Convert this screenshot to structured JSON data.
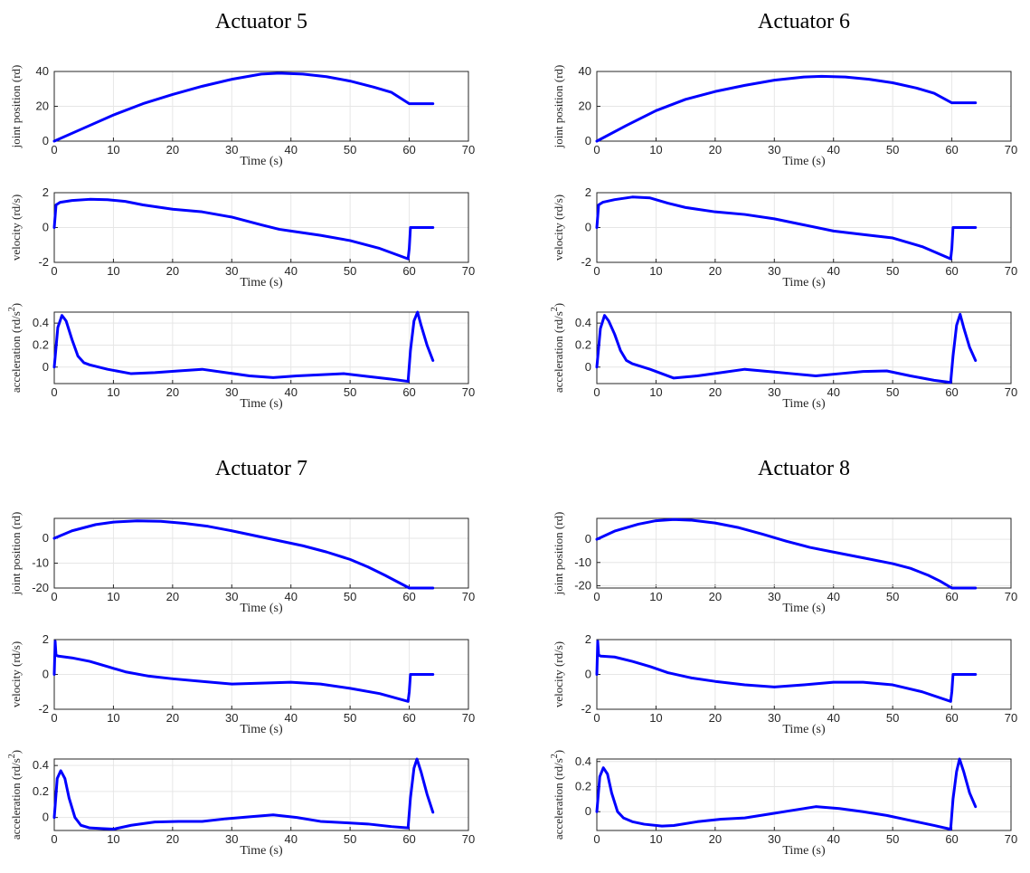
{
  "style": {
    "line_color": "#0000ff",
    "grid": true
  },
  "units": {
    "rd_s2_base": "acceleration (rd/s",
    "rd_s2_exp": "2",
    "rd_s2_tail": ")"
  },
  "chart_data": [
    {
      "title": "Actuator 5",
      "subplots": [
        {
          "type": "line",
          "xlabel": "Time (s)",
          "ylabel": "joint position (rd)",
          "xlim": [
            0,
            70
          ],
          "ylim": [
            0,
            40
          ],
          "xticks": [
            "0",
            "10",
            "20",
            "30",
            "40",
            "50",
            "60",
            "70"
          ],
          "yticks": [
            "0",
            "20",
            "40"
          ],
          "series": [
            {
              "x": [
                0,
                5,
                10,
                15,
                20,
                25,
                30,
                35,
                38,
                42,
                46,
                50,
                54,
                57,
                60,
                64
              ],
              "y": [
                0,
                7.5,
                15,
                21.5,
                26.8,
                31.5,
                35.5,
                38.5,
                39,
                38.5,
                37,
                34.5,
                31,
                28,
                21.5,
                21.5
              ]
            }
          ]
        },
        {
          "type": "line",
          "xlabel": "Time (s)",
          "ylabel": "velocity (rd/s)",
          "xlim": [
            0,
            70
          ],
          "ylim": [
            -2,
            2
          ],
          "xticks": [
            "0",
            "10",
            "20",
            "30",
            "40",
            "50",
            "60",
            "70"
          ],
          "yticks": [
            "-2",
            "0",
            "2"
          ],
          "series": [
            {
              "x": [
                0,
                0.3,
                1,
                3,
                6,
                9,
                12,
                15,
                20,
                25,
                30,
                35,
                38,
                40,
                45,
                50,
                55,
                59.8,
                60,
                60.2,
                61,
                64
              ],
              "y": [
                0,
                1.3,
                1.45,
                1.55,
                1.62,
                1.6,
                1.5,
                1.3,
                1.05,
                0.9,
                0.6,
                0.15,
                -0.1,
                -0.2,
                -0.45,
                -0.75,
                -1.2,
                -1.8,
                -1.2,
                0,
                0,
                0
              ]
            }
          ]
        },
        {
          "type": "line",
          "xlabel": "Time (s)",
          "ylabel": "acceleration (rd/s²)",
          "xlim": [
            0,
            70
          ],
          "ylim": [
            -0.15,
            0.5
          ],
          "xticks": [
            "0",
            "10",
            "20",
            "30",
            "40",
            "50",
            "60",
            "70"
          ],
          "yticks": [
            "0",
            "0.2",
            "0.4"
          ],
          "series": [
            {
              "x": [
                0,
                0.6,
                1.3,
                2,
                3,
                4,
                5,
                6,
                9,
                13,
                17,
                21,
                25,
                29,
                33,
                37,
                41,
                45,
                49,
                53,
                57,
                59.8,
                60.2,
                60.8,
                61.4,
                62,
                63,
                64
              ],
              "y": [
                0,
                0.36,
                0.47,
                0.42,
                0.25,
                0.1,
                0.04,
                0.02,
                -0.02,
                -0.06,
                -0.05,
                -0.035,
                -0.02,
                -0.05,
                -0.08,
                -0.095,
                -0.08,
                -0.07,
                -0.06,
                -0.085,
                -0.11,
                -0.13,
                0.15,
                0.42,
                0.5,
                0.38,
                0.2,
                0.06
              ]
            }
          ]
        }
      ]
    },
    {
      "title": "Actuator 6",
      "subplots": [
        {
          "type": "line",
          "xlabel": "Time (s)",
          "ylabel": "joint position (rd)",
          "xlim": [
            0,
            70
          ],
          "ylim": [
            0,
            40
          ],
          "xticks": [
            "0",
            "10",
            "20",
            "30",
            "40",
            "50",
            "60",
            "70"
          ],
          "yticks": [
            "0",
            "20",
            "40"
          ],
          "series": [
            {
              "x": [
                0,
                5,
                10,
                15,
                20,
                25,
                30,
                35,
                38,
                42,
                46,
                50,
                54,
                57,
                60,
                64
              ],
              "y": [
                0,
                9,
                17.5,
                24,
                28.5,
                32,
                35,
                36.8,
                37.2,
                36.8,
                35.5,
                33.5,
                30.5,
                27.5,
                22,
                22
              ]
            }
          ]
        },
        {
          "type": "line",
          "xlabel": "Time (s)",
          "ylabel": "velocity (rd/s)",
          "xlim": [
            0,
            70
          ],
          "ylim": [
            -2,
            2
          ],
          "xticks": [
            "0",
            "10",
            "20",
            "30",
            "40",
            "50",
            "60",
            "70"
          ],
          "yticks": [
            "-2",
            "0",
            "2"
          ],
          "series": [
            {
              "x": [
                0,
                0.3,
                1,
                3,
                6,
                9,
                12,
                15,
                20,
                25,
                30,
                35,
                40,
                45,
                50,
                55,
                59.8,
                60,
                60.2,
                61,
                64
              ],
              "y": [
                0,
                1.3,
                1.45,
                1.6,
                1.75,
                1.7,
                1.4,
                1.15,
                0.9,
                0.75,
                0.5,
                0.15,
                -0.2,
                -0.4,
                -0.6,
                -1.1,
                -1.8,
                -1.2,
                0,
                0,
                0
              ]
            }
          ]
        },
        {
          "type": "line",
          "xlabel": "Time (s)",
          "ylabel": "acceleration (rd/s²)",
          "xlim": [
            0,
            70
          ],
          "ylim": [
            -0.15,
            0.5
          ],
          "xticks": [
            "0",
            "10",
            "20",
            "30",
            "40",
            "50",
            "60",
            "70"
          ],
          "yticks": [
            "0",
            "0.2",
            "0.4"
          ],
          "series": [
            {
              "x": [
                0,
                0.6,
                1.3,
                2,
                3,
                4,
                5,
                6,
                9,
                13,
                17,
                21,
                25,
                29,
                33,
                37,
                41,
                45,
                49,
                53,
                57,
                59.8,
                60.2,
                60.8,
                61.4,
                62,
                63,
                64
              ],
              "y": [
                0,
                0.35,
                0.47,
                0.42,
                0.3,
                0.15,
                0.06,
                0.03,
                -0.02,
                -0.1,
                -0.08,
                -0.05,
                -0.02,
                -0.04,
                -0.06,
                -0.08,
                -0.06,
                -0.04,
                -0.035,
                -0.08,
                -0.12,
                -0.14,
                0.1,
                0.38,
                0.48,
                0.36,
                0.18,
                0.06
              ]
            }
          ]
        }
      ]
    },
    {
      "title": "Actuator 7",
      "subplots": [
        {
          "type": "line",
          "xlabel": "Time (s)",
          "ylabel": "joint position (rd)",
          "xlim": [
            0,
            70
          ],
          "ylim": [
            -20,
            8
          ],
          "xticks": [
            "0",
            "10",
            "20",
            "30",
            "40",
            "50",
            "60",
            "70"
          ],
          "yticks": [
            "-20",
            "-10",
            "0"
          ],
          "series": [
            {
              "x": [
                0,
                3,
                7,
                10,
                14,
                18,
                22,
                26,
                30,
                34,
                38,
                42,
                46,
                50,
                53,
                56,
                58,
                60,
                64
              ],
              "y": [
                0,
                3,
                5.5,
                6.5,
                7,
                6.8,
                6,
                4.8,
                3,
                1,
                -1,
                -3,
                -5.5,
                -8.5,
                -11.5,
                -15,
                -17.5,
                -20,
                -20
              ]
            }
          ]
        },
        {
          "type": "line",
          "xlabel": "Time (s)",
          "ylabel": "velocity (rd/s)",
          "xlim": [
            0,
            70
          ],
          "ylim": [
            -2,
            2
          ],
          "xticks": [
            "0",
            "10",
            "20",
            "30",
            "40",
            "50",
            "60",
            "70"
          ],
          "yticks": [
            "-2",
            "0",
            "2"
          ],
          "series": [
            {
              "x": [
                0,
                0.15,
                0.3,
                0.7,
                3,
                6,
                9,
                12,
                16,
                20,
                25,
                30,
                35,
                40,
                45,
                50,
                55,
                59.8,
                60,
                60.2,
                61,
                64
              ],
              "y": [
                0,
                1.9,
                1.1,
                1.05,
                0.95,
                0.75,
                0.45,
                0.15,
                -0.1,
                -0.25,
                -0.4,
                -0.55,
                -0.5,
                -0.45,
                -0.55,
                -0.8,
                -1.1,
                -1.55,
                -1,
                0,
                0,
                0
              ]
            }
          ]
        },
        {
          "type": "line",
          "xlabel": "Time (s)",
          "ylabel": "acceleration (rd/s²)",
          "xlim": [
            0,
            70
          ],
          "ylim": [
            -0.1,
            0.45
          ],
          "xticks": [
            "0",
            "10",
            "20",
            "30",
            "40",
            "50",
            "60",
            "70"
          ],
          "yticks": [
            "0",
            "0.2",
            "0.4"
          ],
          "series": [
            {
              "x": [
                0,
                0.5,
                1.1,
                1.8,
                2.5,
                3.5,
                4.5,
                6,
                8,
                10,
                13,
                17,
                21,
                25,
                29,
                33,
                37,
                41,
                45,
                49,
                53,
                57,
                59.8,
                60.2,
                60.8,
                61.3,
                62,
                63,
                64
              ],
              "y": [
                0,
                0.3,
                0.36,
                0.3,
                0.15,
                0,
                -0.06,
                -0.08,
                -0.085,
                -0.09,
                -0.06,
                -0.035,
                -0.03,
                -0.03,
                -0.01,
                0.005,
                0.02,
                0,
                -0.03,
                -0.04,
                -0.05,
                -0.07,
                -0.08,
                0.15,
                0.38,
                0.45,
                0.35,
                0.18,
                0.04
              ]
            }
          ]
        }
      ]
    },
    {
      "title": "Actuator 8",
      "subplots": [
        {
          "type": "line",
          "xlabel": "Time (s)",
          "ylabel": "joint position (rd)",
          "xlim": [
            0,
            70
          ],
          "ylim": [
            -21,
            9
          ],
          "xticks": [
            "0",
            "10",
            "20",
            "30",
            "40",
            "50",
            "60",
            "70"
          ],
          "yticks": [
            "-20",
            "-10",
            "0"
          ],
          "series": [
            {
              "x": [
                0,
                3,
                7,
                10,
                13,
                16,
                20,
                24,
                28,
                32,
                36,
                40,
                45,
                50,
                53,
                56,
                58,
                60,
                64
              ],
              "y": [
                0,
                3.5,
                6.5,
                8,
                8.5,
                8.2,
                7,
                5,
                2.2,
                -0.8,
                -3.5,
                -5.5,
                -8,
                -10.5,
                -12.5,
                -15.5,
                -18,
                -21,
                -21
              ]
            }
          ]
        },
        {
          "type": "line",
          "xlabel": "Time (s)",
          "ylabel": "velocity (rd/s)",
          "xlim": [
            0,
            70
          ],
          "ylim": [
            -2,
            2
          ],
          "xticks": [
            "0",
            "10",
            "20",
            "30",
            "40",
            "50",
            "60",
            "70"
          ],
          "yticks": [
            "-2",
            "0",
            "2"
          ],
          "series": [
            {
              "x": [
                0,
                0.15,
                0.3,
                0.7,
                3,
                6,
                9,
                12,
                16,
                20,
                25,
                30,
                35,
                40,
                45,
                50,
                55,
                59.8,
                60,
                60.2,
                61,
                64
              ],
              "y": [
                0,
                1.9,
                1.1,
                1.05,
                1.0,
                0.75,
                0.45,
                0.1,
                -0.2,
                -0.4,
                -0.6,
                -0.72,
                -0.6,
                -0.45,
                -0.45,
                -0.6,
                -1.0,
                -1.55,
                -1,
                0,
                0,
                0
              ]
            }
          ]
        },
        {
          "type": "line",
          "xlabel": "Time (s)",
          "ylabel": "acceleration (rd/s²)",
          "xlim": [
            0,
            70
          ],
          "ylim": [
            -0.15,
            0.42
          ],
          "xticks": [
            "0",
            "10",
            "20",
            "30",
            "40",
            "50",
            "60",
            "70"
          ],
          "yticks": [
            "0",
            "0.2",
            "0.4"
          ],
          "series": [
            {
              "x": [
                0,
                0.5,
                1.1,
                1.8,
                2.5,
                3.5,
                4.5,
                6,
                8,
                11,
                13,
                17,
                21,
                25,
                29,
                33,
                37,
                41,
                45,
                49,
                53,
                57,
                59.8,
                60.2,
                60.8,
                61.3,
                62,
                63,
                64
              ],
              "y": [
                0,
                0.28,
                0.35,
                0.3,
                0.15,
                0,
                -0.05,
                -0.08,
                -0.1,
                -0.115,
                -0.11,
                -0.08,
                -0.06,
                -0.05,
                -0.02,
                0.01,
                0.04,
                0.025,
                0,
                -0.03,
                -0.07,
                -0.11,
                -0.14,
                0.1,
                0.32,
                0.42,
                0.32,
                0.15,
                0.04
              ]
            }
          ]
        }
      ]
    }
  ]
}
